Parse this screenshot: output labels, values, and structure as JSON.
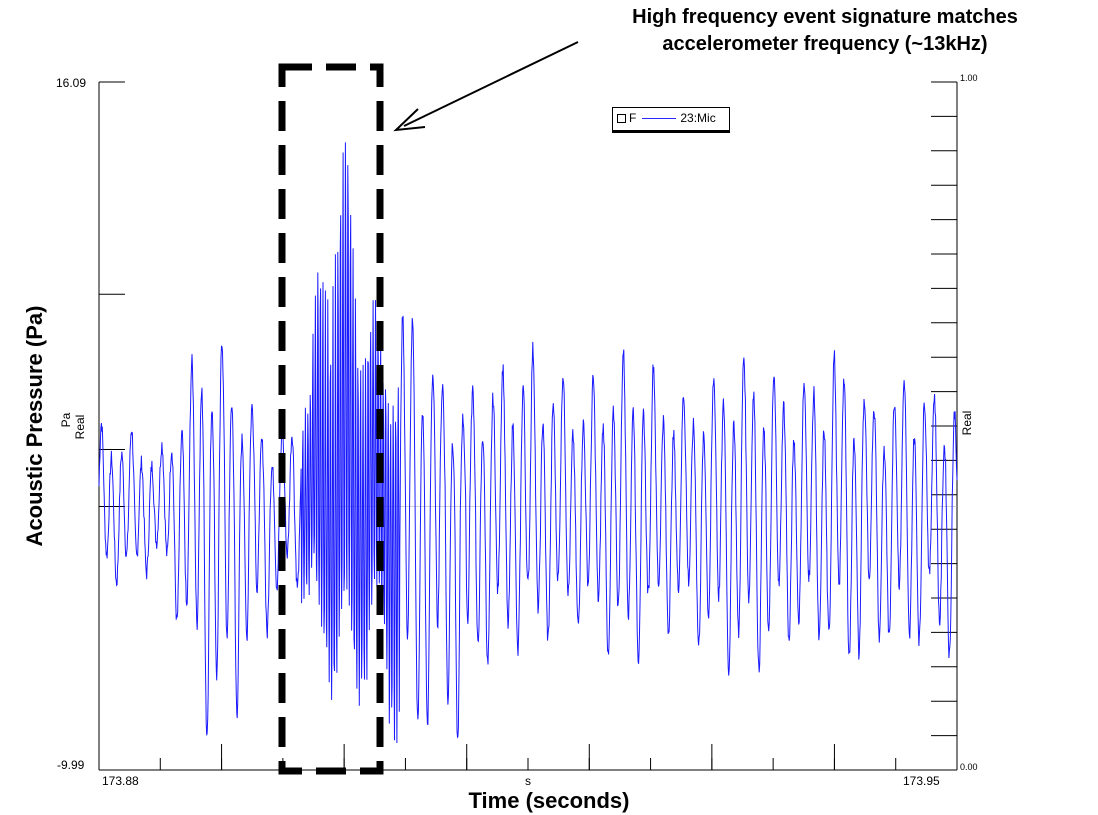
{
  "annotation": {
    "line1": "High frequency event signature matches",
    "line2": "accelerometer frequency (~13kHz)"
  },
  "chart_data": {
    "type": "line",
    "title": "",
    "xlabel": "Time (seconds)",
    "ylabel": "Acoustic Pressure (Pa)",
    "x_axis": {
      "min_label": "173.88",
      "max_label": "173.95",
      "unit": "s",
      "range": [
        173.88,
        173.95
      ]
    },
    "y_axis": {
      "max_label": "16.09",
      "min_label": "-9.99",
      "unit": "Pa",
      "kind": "Real",
      "range": [
        -9.99,
        16.09
      ]
    },
    "y_axis_right": {
      "max_label": "1.00",
      "min_label": "0.00",
      "kind": "Real",
      "range": [
        0.0,
        1.0
      ]
    },
    "legend": {
      "marker_label": "F",
      "entry": "23:Mic",
      "placement": "top-center"
    },
    "series": [
      {
        "name": "23:Mic",
        "color": "#1a1aff",
        "sample_x_range": [
          173.88,
          173.95
        ],
        "envelope": [
          [
            173.88,
            3.2,
            -2.5
          ],
          [
            173.8825,
            3.0,
            -3.2
          ],
          [
            173.885,
            2.2,
            -2.0
          ],
          [
            173.887,
            4.8,
            -5.5
          ],
          [
            173.8885,
            6.6,
            -8.5
          ],
          [
            173.89,
            6.4,
            -9.6
          ],
          [
            173.892,
            4.2,
            -7.0
          ],
          [
            173.8945,
            2.5,
            -4.0
          ],
          [
            173.896,
            3.8,
            -3.0
          ],
          [
            173.8975,
            6.5,
            -4.5
          ],
          [
            173.899,
            16.09,
            -7.5
          ],
          [
            173.9,
            14.5,
            -8.0
          ],
          [
            173.9015,
            11.0,
            -7.0
          ],
          [
            173.903,
            6.0,
            -6.5
          ],
          [
            173.9045,
            8.5,
            -9.99
          ],
          [
            173.906,
            7.5,
            -9.5
          ],
          [
            173.908,
            5.0,
            -8.5
          ],
          [
            173.9095,
            4.0,
            -9.8
          ],
          [
            173.911,
            5.0,
            -6.5
          ],
          [
            173.913,
            5.5,
            -6.0
          ],
          [
            173.915,
            6.3,
            -5.5
          ],
          [
            173.917,
            5.5,
            -5.0
          ],
          [
            173.919,
            4.5,
            -4.5
          ],
          [
            173.921,
            5.0,
            -5.5
          ],
          [
            173.923,
            6.0,
            -6.5
          ],
          [
            173.925,
            5.5,
            -5.0
          ],
          [
            173.9275,
            4.2,
            -4.5
          ],
          [
            173.93,
            4.8,
            -6.0
          ],
          [
            173.932,
            6.0,
            -6.5
          ],
          [
            173.934,
            5.5,
            -6.5
          ],
          [
            173.936,
            4.8,
            -5.5
          ],
          [
            173.938,
            5.0,
            -5.2
          ],
          [
            173.94,
            6.3,
            -6.0
          ],
          [
            173.942,
            4.7,
            -6.5
          ],
          [
            173.944,
            4.0,
            -5.5
          ],
          [
            173.946,
            5.5,
            -6.0
          ],
          [
            173.948,
            4.5,
            -5.0
          ],
          [
            173.95,
            4.5,
            -6.5
          ]
        ]
      }
    ],
    "highlight_window": [
      173.8965,
      173.9045
    ],
    "grid": false
  }
}
